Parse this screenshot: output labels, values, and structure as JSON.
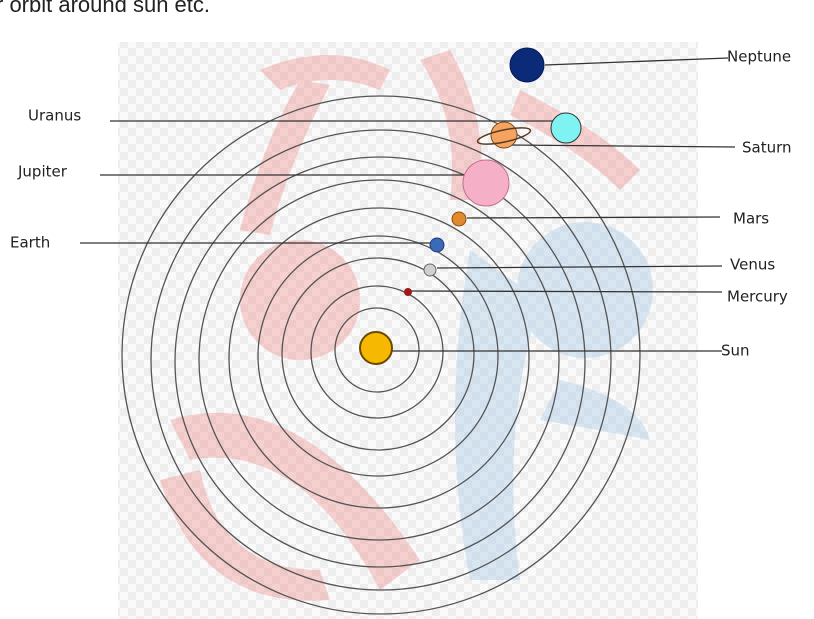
{
  "header": {
    "text": "r orbit around sun etc."
  },
  "labels": [
    "Neptune",
    "Uranus",
    "Saturn",
    "Jupiter",
    "Mars",
    "Earth",
    "Venus",
    "Mercury",
    "Sun"
  ]
}
